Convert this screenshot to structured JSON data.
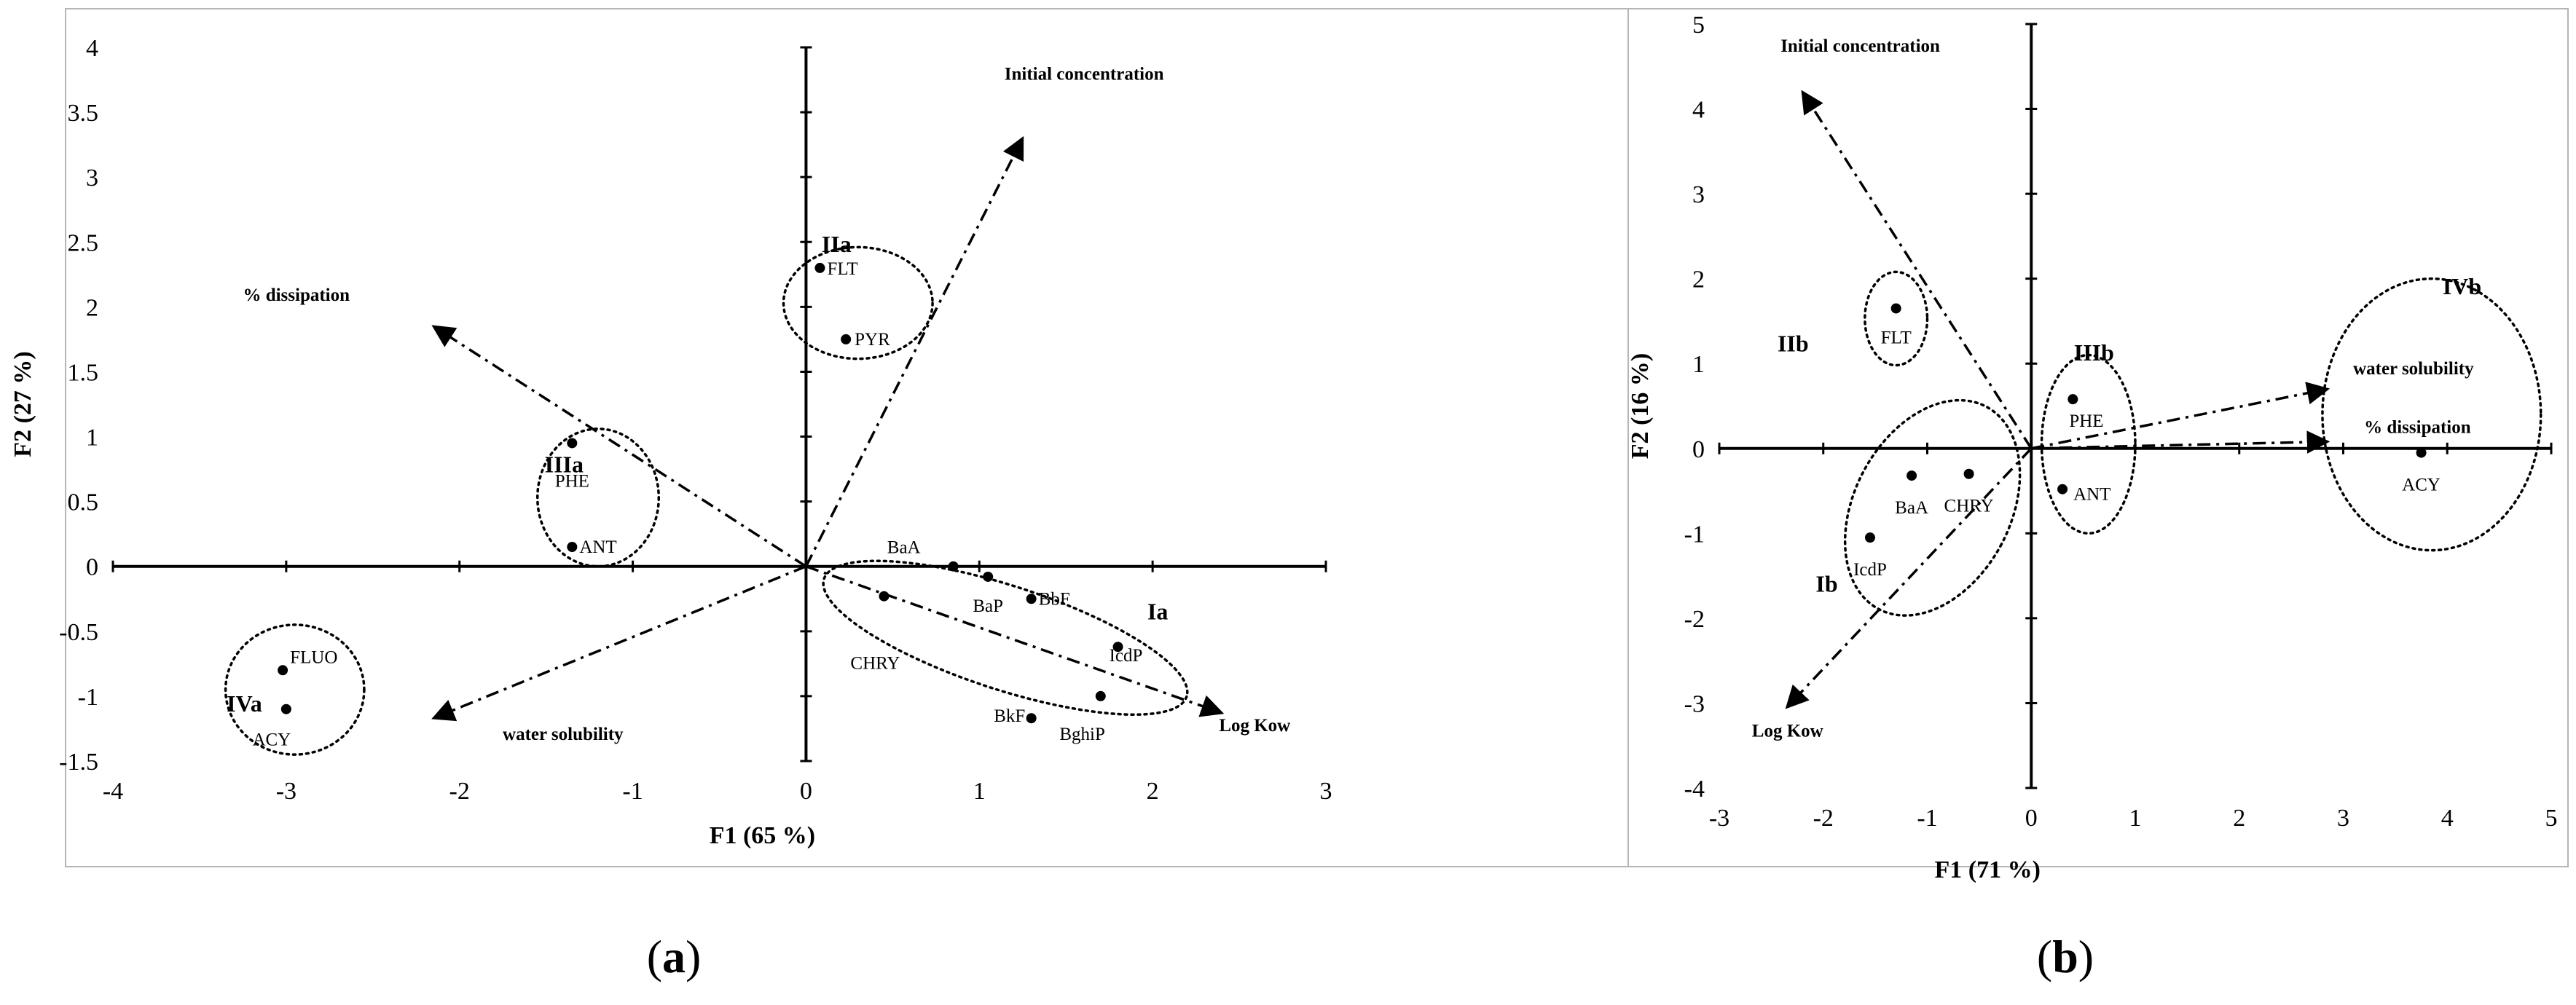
{
  "chart_data": [
    {
      "panel_caption": "(a)",
      "caption_letter": "a",
      "type": "scatter",
      "xlabel": "F1 (65 %)",
      "ylabel": "F2 (27 %)",
      "xlim": [
        -4,
        3
      ],
      "ylim": [
        -1.5,
        4
      ],
      "x_ticks": [
        -4,
        -3,
        -2,
        -1,
        0,
        1,
        2,
        3
      ],
      "y_ticks": [
        4,
        3.5,
        3,
        2.5,
        2,
        1.5,
        1,
        0.5,
        0,
        -0.5,
        -1,
        -1.5
      ],
      "points": [
        {
          "label": "FLT",
          "x": 0.08,
          "y": 2.3
        },
        {
          "label": "PYR",
          "x": 0.23,
          "y": 1.75
        },
        {
          "label": "PHE",
          "x": -1.35,
          "y": 0.95
        },
        {
          "label": "ANT",
          "x": -1.35,
          "y": 0.15
        },
        {
          "label": "BaA",
          "x": 0.85,
          "y": 0.0
        },
        {
          "label": "BaP",
          "x": 1.05,
          "y": -0.08
        },
        {
          "label": "BbF",
          "x": 1.3,
          "y": -0.25
        },
        {
          "label": "CHRY",
          "x": 0.45,
          "y": -0.23
        },
        {
          "label": "IcdP",
          "x": 1.8,
          "y": -0.62
        },
        {
          "label": "BkF",
          "x": 1.7,
          "y": -1.0
        },
        {
          "label": "BghiP",
          "x": 1.3,
          "y": -1.17
        },
        {
          "label": "FLUO",
          "x": -3.02,
          "y": -0.8
        },
        {
          "label": "ACY",
          "x": -3.0,
          "y": -1.1
        }
      ],
      "variables": [
        {
          "label": "Initial concentration",
          "x": 1.25,
          "y": 3.3
        },
        {
          "label": "% dissipation",
          "x": -2.15,
          "y": 1.85
        },
        {
          "label": "Log Kow",
          "x": 2.4,
          "y": -1.13
        },
        {
          "label": "water solubility",
          "x": -2.15,
          "y": -1.17
        }
      ],
      "groups": [
        {
          "label": "IIa",
          "cx": 0.3,
          "cy": 2.03,
          "rx": 0.43,
          "ry": 0.43,
          "rot": 0
        },
        {
          "label": "IIIa",
          "cx": -1.2,
          "cy": 0.53,
          "rx": 0.35,
          "ry": 0.53,
          "rot": 0
        },
        {
          "label": "Ia",
          "cx": 1.15,
          "cy": -0.55,
          "rx": 1.1,
          "ry": 0.4,
          "rot": 18
        },
        {
          "label": "IVa",
          "cx": -2.95,
          "cy": -0.95,
          "rx": 0.4,
          "ry": 0.5,
          "rot": 0
        }
      ]
    },
    {
      "panel_caption": "(b)",
      "caption_letter": "b",
      "type": "scatter",
      "xlabel": "F1 (71 %)",
      "ylabel": "F2 (16 %)",
      "xlim": [
        -3,
        5
      ],
      "ylim": [
        -4,
        5
      ],
      "x_ticks": [
        -3,
        -2,
        -1,
        0,
        1,
        2,
        3,
        4,
        5
      ],
      "y_ticks": [
        5,
        4,
        3,
        2,
        1,
        0,
        -1,
        -2,
        -3,
        -4
      ],
      "points": [
        {
          "label": "FLT",
          "x": -1.3,
          "y": 1.65
        },
        {
          "label": "PHE",
          "x": 0.4,
          "y": 0.58
        },
        {
          "label": "ANT",
          "x": 0.3,
          "y": -0.48
        },
        {
          "label": "BaA",
          "x": -1.15,
          "y": -0.32
        },
        {
          "label": "CHRY",
          "x": -0.6,
          "y": -0.3
        },
        {
          "label": "IcdP",
          "x": -1.55,
          "y": -1.05
        },
        {
          "label": "ACY",
          "x": 3.75,
          "y": -0.05
        }
      ],
      "variables": [
        {
          "label": "Initial concentration",
          "x": -2.2,
          "y": 4.2
        },
        {
          "label": "water solubility",
          "x": 2.85,
          "y": 0.7
        },
        {
          "label": "% dissipation",
          "x": 2.85,
          "y": 0.08
        },
        {
          "label": "Log Kow",
          "x": -2.35,
          "y": -3.05
        }
      ],
      "groups": [
        {
          "label": "IIb",
          "cx": -1.3,
          "cy": 1.53,
          "rx": 0.3,
          "ry": 0.55,
          "rot": 0
        },
        {
          "label": "IIIb",
          "cx": 0.55,
          "cy": 0.05,
          "rx": 0.45,
          "ry": 1.05,
          "rot": 0
        },
        {
          "label": "IVb",
          "cx": 3.85,
          "cy": 0.4,
          "rx": 1.05,
          "ry": 1.6,
          "rot": 0
        },
        {
          "label": "Ib",
          "cx": -0.95,
          "cy": -0.7,
          "rx": 0.75,
          "ry": 1.35,
          "rot": 28
        }
      ]
    }
  ],
  "colors": {
    "ink": "#000000",
    "background": "#ffffff",
    "frame": "#b5b5b5"
  }
}
